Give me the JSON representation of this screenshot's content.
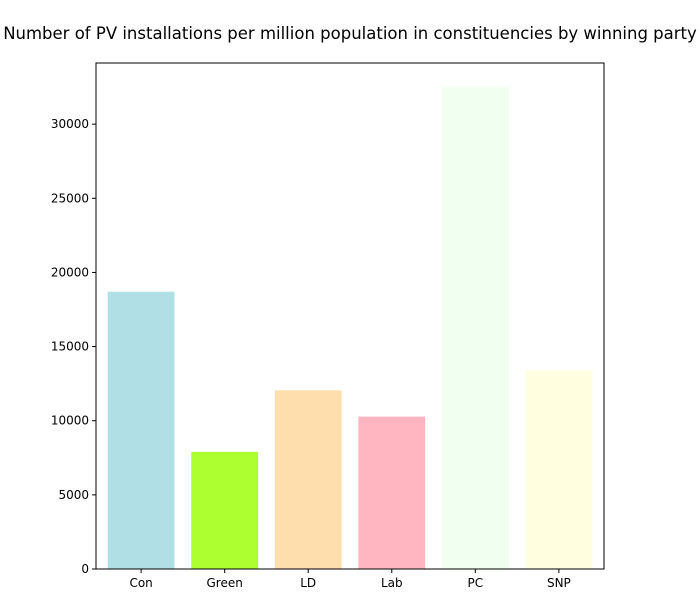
{
  "chart_data": {
    "type": "bar",
    "title": "Number of PV installations per million population in constituencies by winning party",
    "xlabel": "",
    "ylabel": "",
    "categories": [
      "Con",
      "Green",
      "LD",
      "Lab",
      "PC",
      "SNP"
    ],
    "values": [
      18700,
      7900,
      12050,
      10280,
      32500,
      13400
    ],
    "colors": [
      "#b0e0e6",
      "#adff2f",
      "#ffdead",
      "#ffb6c1",
      "#f0fff0",
      "#ffffe0"
    ],
    "ylim": [
      0,
      34125
    ],
    "yticks": [
      0,
      5000,
      10000,
      15000,
      20000,
      25000,
      30000
    ],
    "grid": false,
    "legend": "none"
  }
}
